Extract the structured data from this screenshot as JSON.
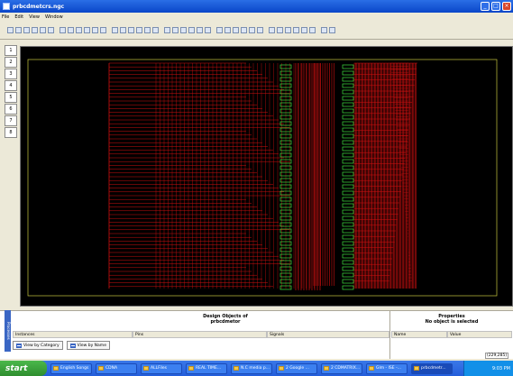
{
  "window": {
    "title": "prbcdmetcrs.ngc"
  },
  "menu": [
    "File",
    "Edit",
    "View",
    "Window"
  ],
  "row_labels": [
    "1",
    "2",
    "3",
    "4",
    "5",
    "6",
    "7",
    "8"
  ],
  "bottom": {
    "side_tab": "Processes",
    "design_title_1": "Design Objects of",
    "design_title_2": "prbcdmetor",
    "prop_title_1": "Properties",
    "prop_title_2": "No object is selected",
    "col_instances": "Instances",
    "col_pins": "Pins",
    "col_signals": "Signals",
    "col_name": "Name",
    "col_value": "Value",
    "tab_category": "View by Category",
    "tab_name": "View by Name",
    "coords": "(229,285)"
  },
  "taskbar": {
    "start": "start",
    "tasks": [
      "English Songs",
      "CDNA",
      "ALLFiles",
      "REAL TIME...",
      "N.C media p...",
      "2 Google ...",
      "2 CDMATRIX...",
      "Glm - ISE -...",
      "prbcdmetr..."
    ],
    "clock": "9:03 PM"
  },
  "colors": {
    "wire": "#d01010",
    "component": "#40e040",
    "canvas": "#000000"
  }
}
